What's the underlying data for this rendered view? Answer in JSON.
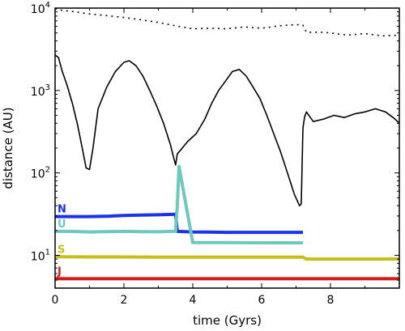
{
  "chart_data": {
    "type": "line",
    "title": "",
    "xlabel": "time (Gyrs)",
    "ylabel": "distance (AU)",
    "xlim": [
      0,
      10
    ],
    "ylim": [
      4,
      10000
    ],
    "y_scale": "log",
    "grid": false,
    "x_ticks": [
      {
        "value": 0,
        "label": "0"
      },
      {
        "value": 2,
        "label": "2"
      },
      {
        "value": 4,
        "label": "4"
      },
      {
        "value": 6,
        "label": "6"
      },
      {
        "value": 8,
        "label": "8"
      }
    ],
    "y_ticks": [
      {
        "value": 10,
        "base": "10",
        "exp": "1"
      },
      {
        "value": 100,
        "base": "10",
        "exp": "2"
      },
      {
        "value": 1000,
        "base": "10",
        "exp": "3"
      },
      {
        "value": 10000,
        "base": "10",
        "exp": "4"
      }
    ],
    "series": [
      {
        "name": "",
        "color": "#000000",
        "style": "dotted",
        "x": [
          0,
          0.2,
          0.5,
          1.0,
          1.5,
          2.0,
          2.5,
          3.0,
          3.5,
          4.0,
          4.5,
          5.0,
          5.5,
          6.0,
          6.5,
          7.0,
          7.2,
          7.3,
          7.8,
          8.5,
          9.0,
          9.5,
          10.0
        ],
        "y": [
          9800,
          9400,
          9100,
          8500,
          8100,
          7700,
          7200,
          6700,
          6100,
          5600,
          5700,
          5600,
          5900,
          5700,
          6100,
          6300,
          6200,
          5100,
          5100,
          4700,
          4900,
          4600,
          4700
        ]
      },
      {
        "name": "",
        "color": "#000000",
        "style": "solid",
        "x": [
          0,
          0.1,
          0.2,
          0.35,
          0.5,
          0.65,
          0.8,
          0.9,
          1.0,
          1.1,
          1.25,
          1.5,
          1.75,
          2.0,
          2.15,
          2.35,
          2.55,
          2.75,
          2.95,
          3.15,
          3.35,
          3.45,
          3.5,
          3.55,
          3.65,
          3.85,
          4.1,
          4.35,
          4.55,
          4.75,
          4.95,
          5.15,
          5.35,
          5.55,
          5.75,
          5.95,
          6.15,
          6.35,
          6.55,
          6.75,
          6.95,
          7.1,
          7.15,
          7.2,
          7.25,
          7.3,
          7.5,
          7.8,
          8.1,
          8.4,
          8.7,
          9.0,
          9.3,
          9.6,
          9.85,
          10.0
        ],
        "y": [
          2700,
          2500,
          1750,
          1150,
          700,
          390,
          190,
          115,
          110,
          200,
          600,
          1100,
          1700,
          2200,
          2300,
          2000,
          1500,
          1000,
          650,
          400,
          220,
          150,
          125,
          170,
          190,
          240,
          300,
          450,
          700,
          1000,
          1300,
          1700,
          1800,
          1500,
          1100,
          800,
          500,
          300,
          180,
          100,
          55,
          40,
          42,
          350,
          480,
          550,
          420,
          450,
          500,
          470,
          520,
          550,
          600,
          550,
          460,
          400
        ]
      },
      {
        "name": "N",
        "color": "#1a33e8",
        "x": [
          0,
          0.5,
          1.0,
          1.5,
          2.0,
          2.5,
          3.0,
          3.5,
          3.55,
          4.0,
          5.0,
          6.0,
          7.0,
          7.2
        ],
        "y": [
          29.5,
          29.5,
          29.5,
          29.8,
          30.5,
          30.8,
          31,
          31.5,
          19.5,
          19.2,
          19.0,
          19.0,
          19.0,
          19.0
        ]
      },
      {
        "name": "U",
        "color": "#6ec8be",
        "x": [
          0,
          0.5,
          1.0,
          1.5,
          2.0,
          2.5,
          3.0,
          3.4,
          3.5,
          3.55,
          3.6,
          4.0,
          5.0,
          6.0,
          7.0,
          7.2
        ],
        "y": [
          19.5,
          19.5,
          19.2,
          19.4,
          19.5,
          19.4,
          19.3,
          19.5,
          19.5,
          40,
          120,
          14.3,
          14.3,
          14.2,
          14.2,
          14.2
        ]
      },
      {
        "name": "S",
        "color": "#c8be18",
        "x": [
          0,
          1.0,
          2.0,
          3.0,
          4.0,
          5.0,
          6.0,
          7.2,
          7.3,
          8.0,
          9.0,
          10.0
        ],
        "y": [
          9.6,
          9.55,
          9.55,
          9.5,
          9.5,
          9.5,
          9.5,
          9.5,
          9.0,
          9.0,
          9.0,
          9.0
        ]
      },
      {
        "name": "J",
        "color": "#d01818",
        "x": [
          0,
          1.0,
          2.0,
          3.0,
          4.0,
          5.0,
          6.0,
          7.0,
          8.0,
          9.0,
          10.0
        ],
        "y": [
          5.2,
          5.2,
          5.2,
          5.2,
          5.2,
          5.2,
          5.2,
          5.2,
          5.2,
          5.2,
          5.2
        ]
      }
    ]
  }
}
